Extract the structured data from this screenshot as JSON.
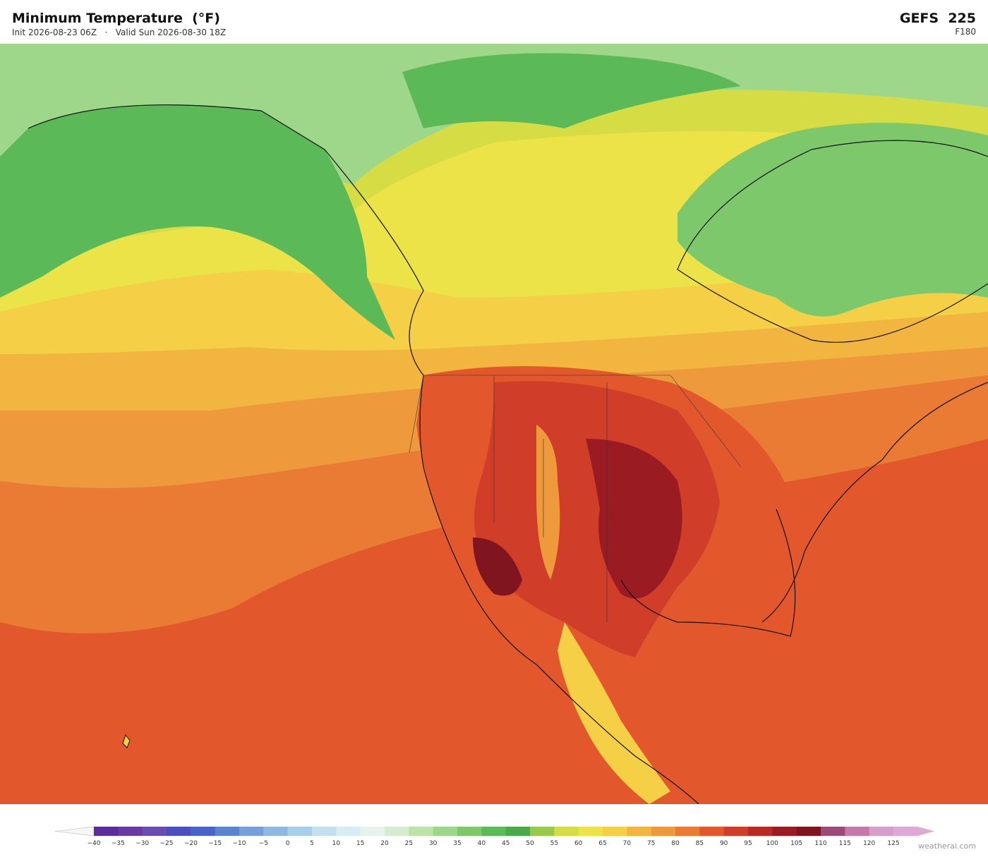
{
  "header": {
    "title": "Minimum Temperature  (°F)",
    "subtitle": "Init 2026-08-23 06Z   ·   Valid Sun 2026-08-30 18Z",
    "model": "GEFS  225",
    "forecast_hour": "F180"
  },
  "colorbar": {
    "labels": [
      "−40",
      "−35",
      "−30",
      "−25",
      "−20",
      "−15",
      "−10",
      "−5",
      "0",
      "5",
      "10",
      "15",
      "20",
      "25",
      "30",
      "35",
      "40",
      "45",
      "50",
      "55",
      "60",
      "65",
      "70",
      "75",
      "80",
      "85",
      "90",
      "95",
      "100",
      "105",
      "110",
      "115",
      "120",
      "125"
    ],
    "colors": [
      "#5b2d9a",
      "#6b3aa0",
      "#6a4bb0",
      "#4b4fc0",
      "#4a63c8",
      "#5b84d0",
      "#78a0d8",
      "#8fb8e0",
      "#a8cfe8",
      "#c2e0ef",
      "#d8ecf3",
      "#e4f3ec",
      "#d5ecd0",
      "#bde3a8",
      "#9ed68a",
      "#7dc86a",
      "#5cb957",
      "#4aaa4a",
      "#99c94a",
      "#d6dc44",
      "#ebe347",
      "#f5cf45",
      "#f2b540",
      "#ee9a3c",
      "#ea7b34",
      "#e2582c",
      "#d03e2a",
      "#b82a26",
      "#9a1c22",
      "#801520",
      "#9c4a78",
      "#c479aa",
      "#d79dcc",
      "#dfa9d5"
    ],
    "under_color": "#f6f6f6",
    "over_color": "#dfa9d5"
  },
  "watermark": "weatherai.com"
}
